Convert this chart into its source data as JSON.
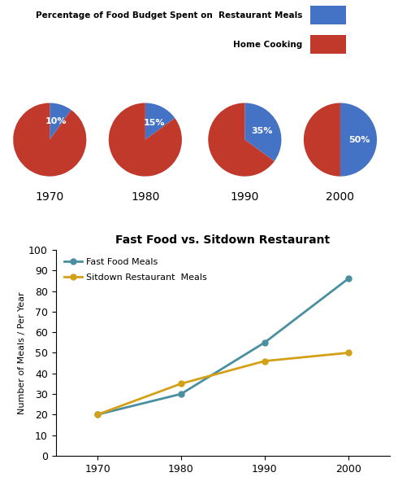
{
  "pie_years": [
    "1970",
    "1980",
    "1990",
    "2000"
  ],
  "pie_restaurant_pct": [
    10,
    15,
    35,
    50
  ],
  "pie_home_pct": [
    90,
    85,
    65,
    50
  ],
  "pie_color_restaurant": "#4472C4",
  "pie_color_home": "#C0392B",
  "pie_legend_restaurant": "Percentage of Food Budget Spent on  Restaurant Meals",
  "pie_legend_home": "Home Cooking",
  "line_title": "Fast Food vs. Sitdown Restaurant",
  "line_years": [
    1970,
    1980,
    1990,
    2000
  ],
  "fast_food": [
    20,
    30,
    55,
    86
  ],
  "sitdown": [
    20,
    35,
    46,
    50
  ],
  "line_color_fast": "#4A8FA0",
  "line_color_sitdown": "#D4A017",
  "line_label_fast": "Fast Food Meals",
  "line_label_sitdown": "Sitdown Restaurant  Meals",
  "ylabel": "Number of Meals / Per Year",
  "ylim": [
    0,
    100
  ],
  "yticks": [
    0,
    10,
    20,
    30,
    40,
    50,
    60,
    70,
    80,
    90,
    100
  ]
}
